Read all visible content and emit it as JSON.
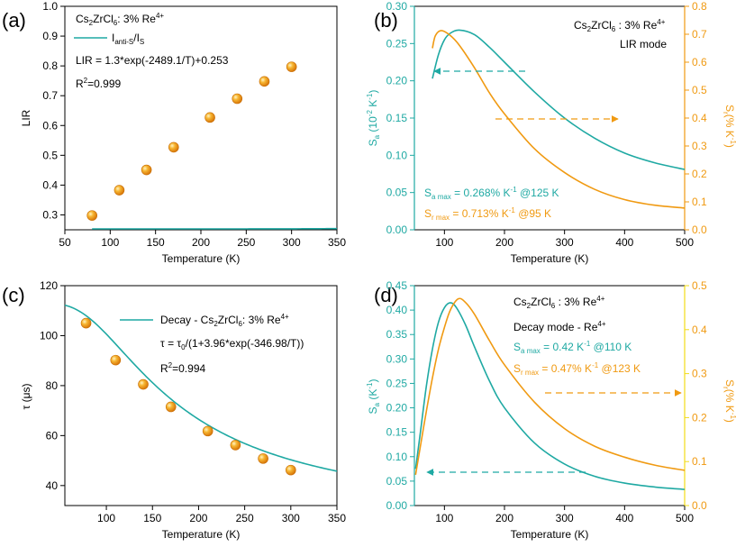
{
  "colors": {
    "teal": "#1fa9a3",
    "orange": "#f09a12",
    "yellow": "#f2dc18",
    "axis": "#000000"
  },
  "chart_data": [
    {
      "panel": "a",
      "type": "scatter",
      "panel_label": "(a)",
      "xlabel": "Temperature (K)",
      "ylabel": "LIR",
      "xlim": [
        50,
        350
      ],
      "ylim": [
        0.25,
        1.0
      ],
      "xticks": [
        "50",
        "100",
        "150",
        "200",
        "250",
        "300",
        "350"
      ],
      "yticks": [
        "0.3",
        "0.4",
        "0.5",
        "0.6",
        "0.7",
        "0.8",
        "0.9",
        "1.0"
      ],
      "points": {
        "x": [
          80,
          110,
          140,
          170,
          210,
          240,
          270,
          300
        ],
        "y": [
          0.298,
          0.383,
          0.451,
          0.527,
          0.627,
          0.69,
          0.748,
          0.797
        ]
      },
      "fit": {
        "A": 1.3,
        "B": 2489.1,
        "C": 0.253,
        "x_range": [
          80,
          350
        ]
      },
      "annotations": {
        "sample_pre": "Cs",
        "sample_sub1": "2",
        "sample_mid": "ZrCl",
        "sample_sub2": "6",
        "sample_post": ": 3% Re",
        "sample_sup": "4+",
        "legend_I1": "I",
        "legend_sub1": "anti-S",
        "legend_slash": "/I",
        "legend_sub2": "S",
        "equation": "LIR = 1.3*exp(-2489.1/T)+0.253",
        "r2": "R",
        "r2_sup": "2",
        "r2_val": "=0.999"
      }
    },
    {
      "panel": "b",
      "type": "line",
      "panel_label": "(b)",
      "xlabel": "Temperature (K)",
      "xlim": [
        50,
        500
      ],
      "ylim_left": [
        0.0,
        0.3
      ],
      "ylim_right": [
        0.0,
        0.8
      ],
      "xticks": [
        "100",
        "200",
        "300",
        "400",
        "500"
      ],
      "yticks_left": [
        "0.00",
        "0.05",
        "0.10",
        "0.15",
        "0.20",
        "0.25",
        "0.30"
      ],
      "yticks_right": [
        "0.0",
        "0.1",
        "0.2",
        "0.3",
        "0.4",
        "0.5",
        "0.6",
        "0.7",
        "0.8"
      ],
      "ylabel_left": {
        "base": "S",
        "sub": "a",
        "unit_pre": " (10",
        "exp1": "-2",
        "unit_mid": " K",
        "exp2": "-1",
        "unit_post": ")"
      },
      "ylabel_right": {
        "base": "S",
        "sub": "r",
        "unit_pre": "(% K",
        "exp": "-1",
        "unit_post": ")"
      },
      "series": [
        {
          "name": "Sa",
          "axis": "left",
          "x": [
            80,
            90,
            100,
            110,
            125,
            150,
            175,
            200,
            250,
            300,
            350,
            400,
            450,
            500
          ],
          "y": [
            0.203,
            0.235,
            0.255,
            0.264,
            0.268,
            0.262,
            0.245,
            0.225,
            0.185,
            0.15,
            0.123,
            0.103,
            0.09,
            0.081
          ]
        },
        {
          "name": "Sr",
          "axis": "right",
          "x": [
            80,
            85,
            95,
            110,
            125,
            150,
            175,
            200,
            250,
            300,
            350,
            400,
            450,
            500
          ],
          "y": [
            0.65,
            0.695,
            0.713,
            0.695,
            0.66,
            0.58,
            0.49,
            0.415,
            0.29,
            0.205,
            0.145,
            0.108,
            0.088,
            0.078
          ]
        }
      ],
      "annotations": {
        "sample_pre": "Cs",
        "sample_sub1": "2",
        "sample_mid": "ZrCl",
        "sample_sub2": "6",
        "sample_post": " : 3% Re",
        "sample_sup": "4+",
        "mode": "LIR mode",
        "sa_base": "S",
        "sa_sub": "a max",
        "sa_text": " = 0.268% K",
        "sa_exp": "-1",
        "sa_at": " @125 K",
        "sr_base": "S",
        "sr_sub": "r max",
        "sr_text": " = 0.713% K",
        "sr_exp": "-1",
        "sr_at": " @95 K"
      }
    },
    {
      "panel": "c",
      "type": "scatter",
      "panel_label": "(c)",
      "xlabel": "Temperature (K)",
      "ylabel": "τ  (μs)",
      "xlim": [
        55,
        350
      ],
      "ylim": [
        32,
        120
      ],
      "xticks": [
        "100",
        "150",
        "200",
        "250",
        "300",
        "350"
      ],
      "yticks": [
        "40",
        "60",
        "80",
        "100",
        "120"
      ],
      "points": {
        "x": [
          78,
          110,
          140,
          170,
          210,
          240,
          270,
          300
        ],
        "y": [
          105.0,
          90.2,
          80.5,
          71.5,
          61.8,
          56.2,
          50.8,
          46.2
        ]
      },
      "fit": {
        "tau0": 113,
        "A": 3.96,
        "B": 346.98,
        "x_range": [
          55,
          350
        ]
      },
      "annotations": {
        "legend_pre": "Decay - Cs",
        "legend_sub1": "2",
        "legend_mid": "ZrCl",
        "legend_sub2": "6",
        "legend_post": ": 3% Re",
        "legend_sup": "4+",
        "eq_pre": "τ = τ",
        "eq_sub": "0",
        "eq_post": "/(1+3.96*exp(-346.98/T))",
        "r2": "R",
        "r2_sup": "2",
        "r2_val": "=0.994"
      }
    },
    {
      "panel": "d",
      "type": "line",
      "panel_label": "(d)",
      "xlabel": "Temperature (K)",
      "xlim": [
        50,
        500
      ],
      "ylim_left": [
        0.0,
        0.45
      ],
      "ylim_right": [
        0.0,
        0.5
      ],
      "xticks": [
        "100",
        "200",
        "300",
        "400",
        "500"
      ],
      "yticks_left": [
        "0.00",
        "0.05",
        "0.10",
        "0.15",
        "0.20",
        "0.25",
        "0.30",
        "0.35",
        "0.40",
        "0.45"
      ],
      "yticks_right": [
        "0.0",
        "0.1",
        "0.2",
        "0.3",
        "0.4",
        "0.5"
      ],
      "ylabel_left": {
        "base": "S",
        "sub": "a",
        "unit_pre": " (K",
        "exp": "-1",
        "unit_post": ")"
      },
      "ylabel_right": {
        "base": "S",
        "sub": "r",
        "unit_pre": "(% K",
        "exp": "-1",
        "unit_post": ")"
      },
      "series": [
        {
          "name": "Sa",
          "axis": "left",
          "x": [
            52,
            60,
            70,
            80,
            90,
            100,
            110,
            120,
            135,
            150,
            175,
            200,
            250,
            300,
            350,
            400,
            450,
            500
          ],
          "y": [
            0.075,
            0.15,
            0.245,
            0.32,
            0.375,
            0.405,
            0.415,
            0.405,
            0.37,
            0.325,
            0.255,
            0.2,
            0.128,
            0.085,
            0.06,
            0.046,
            0.038,
            0.033
          ]
        },
        {
          "name": "Sr",
          "axis": "right",
          "x": [
            52,
            60,
            70,
            80,
            90,
            100,
            110,
            123,
            135,
            150,
            175,
            200,
            250,
            300,
            350,
            400,
            450,
            500
          ],
          "y": [
            0.07,
            0.135,
            0.215,
            0.29,
            0.355,
            0.405,
            0.445,
            0.47,
            0.462,
            0.435,
            0.375,
            0.32,
            0.235,
            0.175,
            0.135,
            0.11,
            0.092,
            0.08
          ]
        }
      ],
      "annotations": {
        "sample_pre": "Cs",
        "sample_sub1": "2",
        "sample_mid": "ZrCl",
        "sample_sub2": "6",
        "sample_post": " : 3% Re",
        "sample_sup": "4+",
        "mode_pre": "Decay mode - Re",
        "mode_sup": "4+",
        "sa_base": "S",
        "sa_sub": "a max",
        "sa_text": " = 0.42 K",
        "sa_exp": "-1",
        "sa_at": " @110 K",
        "sr_base": "S",
        "sr_sub": "r max",
        "sr_text": " = 0.47% K",
        "sr_exp": "-1",
        "sr_at": " @123 K"
      }
    }
  ]
}
